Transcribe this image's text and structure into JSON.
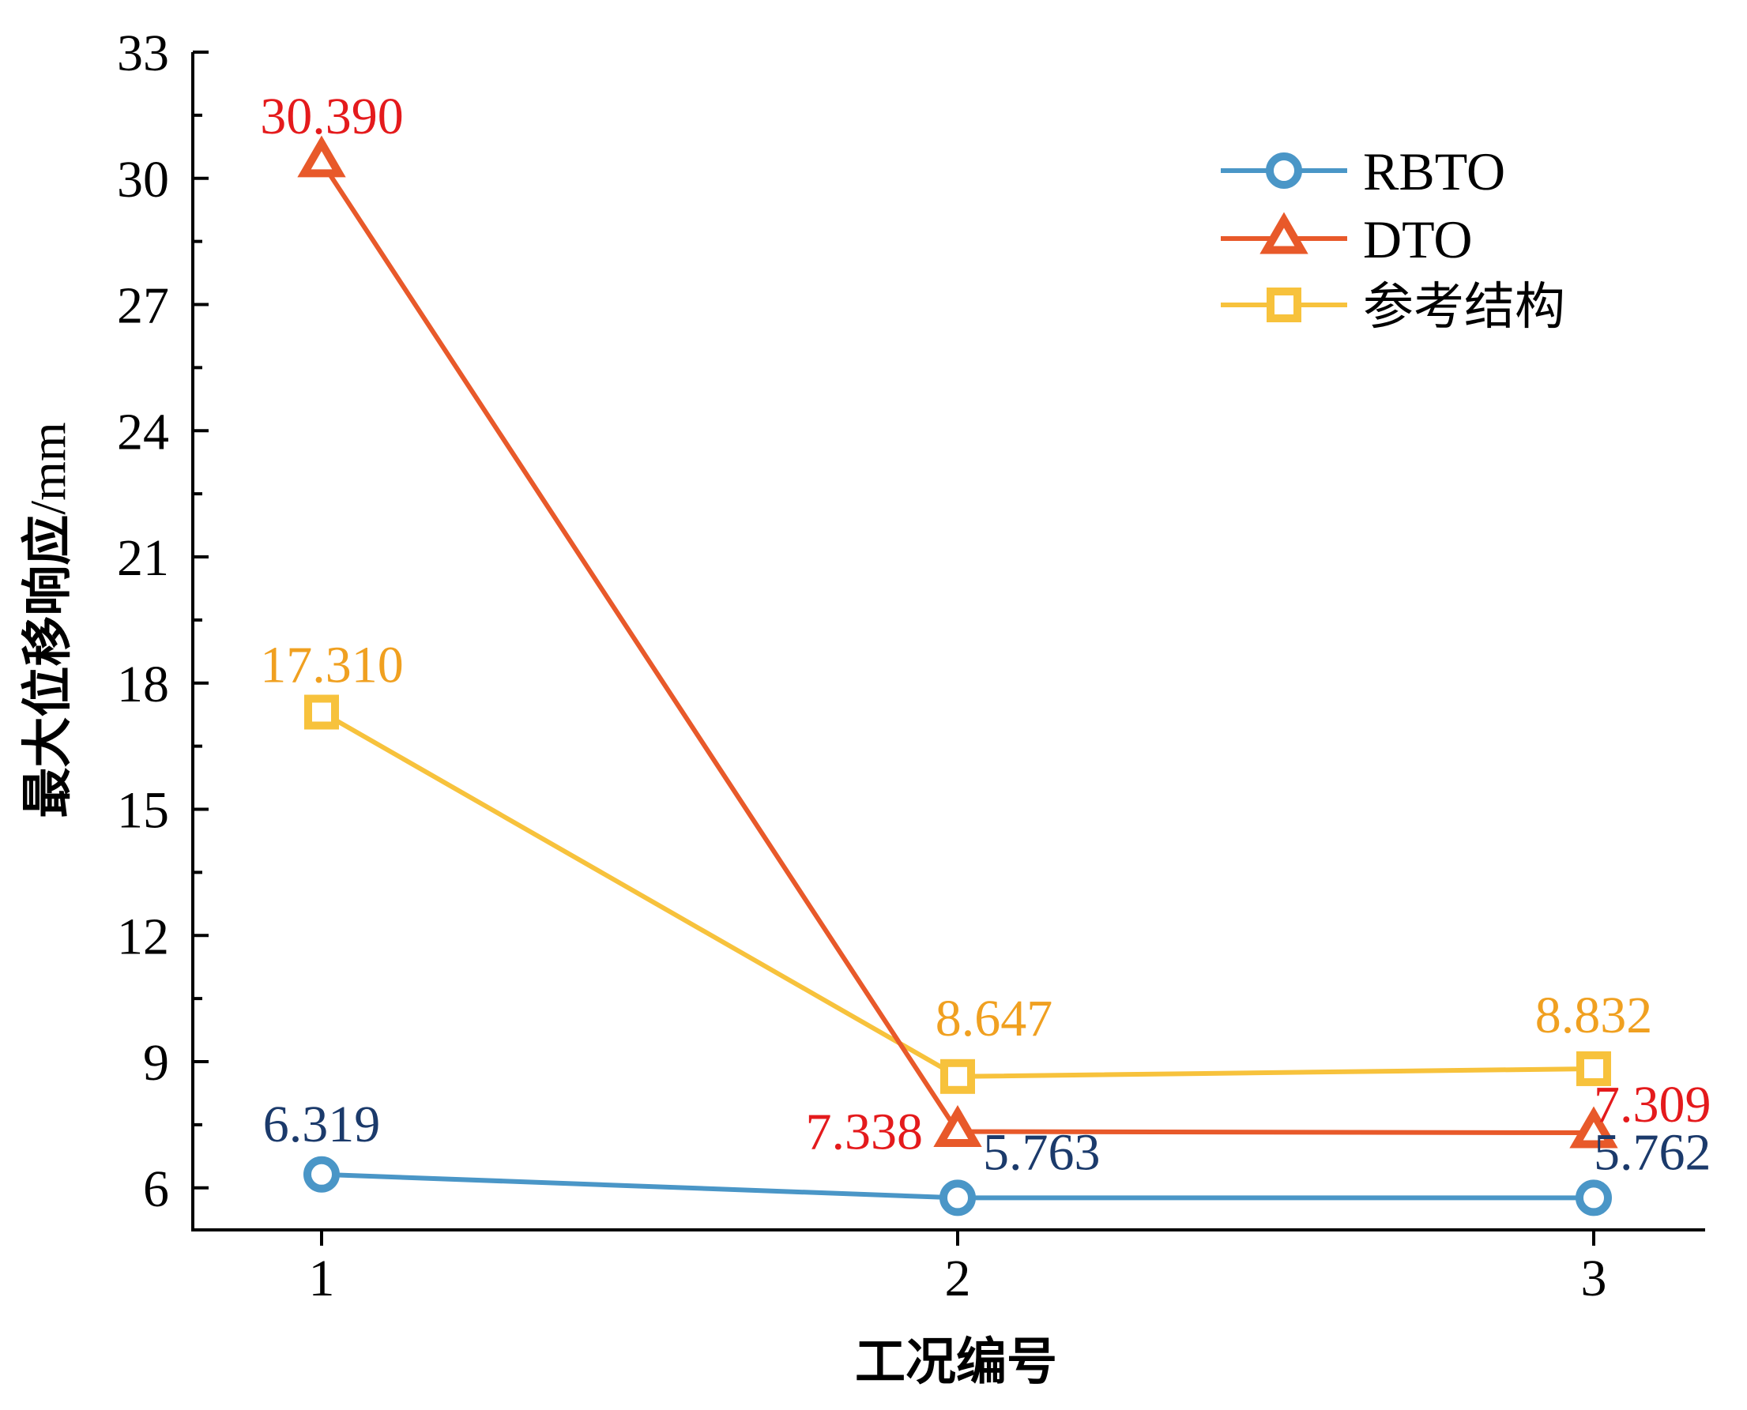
{
  "chart_data": {
    "type": "line",
    "title": "",
    "xlabel": "工况编号",
    "ylabel": "最大位移响应/mm",
    "categories": [
      "1",
      "2",
      "3"
    ],
    "x_ticks": [
      "1",
      "2",
      "3"
    ],
    "ylim": [
      5,
      33
    ],
    "y_ticks": [
      6,
      9,
      12,
      15,
      18,
      21,
      24,
      27,
      30,
      33
    ],
    "y_minor_step": 1.5,
    "grid": false,
    "legend_position": "top-right",
    "series": [
      {
        "name": "RBTO",
        "values": [
          6.319,
          5.763,
          5.762
        ],
        "labels": [
          "6.319",
          "5.763",
          "5.762"
        ],
        "color": "#4a96c7",
        "label_color": "#1b3a6b",
        "marker": "circle"
      },
      {
        "name": "DTO",
        "values": [
          30.39,
          7.338,
          7.309
        ],
        "labels": [
          "30.390",
          "7.338",
          "7.309"
        ],
        "color": "#e8592a",
        "label_color": "#e41a1c",
        "marker": "triangle"
      },
      {
        "name": "参考结构",
        "values": [
          17.31,
          8.647,
          8.832
        ],
        "labels": [
          "17.310",
          "8.647",
          "8.832"
        ],
        "color": "#f7c23c",
        "label_color": "#f0a020",
        "marker": "square"
      }
    ]
  }
}
